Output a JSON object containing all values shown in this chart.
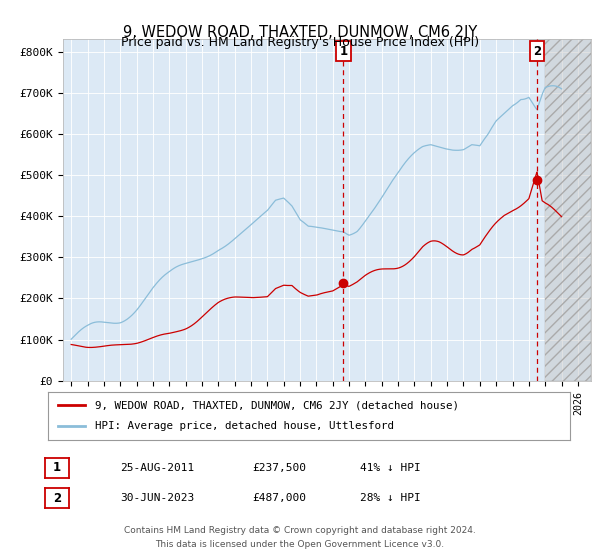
{
  "title": "9, WEDOW ROAD, THAXTED, DUNMOW, CM6 2JY",
  "subtitle": "Price paid vs. HM Land Registry's House Price Index (HPI)",
  "ylabel_ticks": [
    "£0",
    "£100K",
    "£200K",
    "£300K",
    "£400K",
    "£500K",
    "£600K",
    "£700K",
    "£800K"
  ],
  "ytick_values": [
    0,
    100000,
    200000,
    300000,
    400000,
    500000,
    600000,
    700000,
    800000
  ],
  "ylim": [
    0,
    830000
  ],
  "xlim_start": 1994.5,
  "xlim_end": 2026.8,
  "hpi_color": "#8bbdd9",
  "price_color": "#cc0000",
  "vline_color": "#cc0000",
  "annotation_box_color": "#cc0000",
  "plot_bg_color": "#dce9f5",
  "hatch_bg_color": "#d0d0d0",
  "legend_label_red": "9, WEDOW ROAD, THAXTED, DUNMOW, CM6 2JY (detached house)",
  "legend_label_blue": "HPI: Average price, detached house, Uttlesford",
  "sale1_date": 2011.647,
  "sale1_price": 237500,
  "sale2_date": 2023.495,
  "sale2_price": 487000,
  "footer_line1": "Contains HM Land Registry data © Crown copyright and database right 2024.",
  "footer_line2": "This data is licensed under the Open Government Licence v3.0.",
  "table_row1": [
    "1",
    "25-AUG-2011",
    "£237,500",
    "41% ↓ HPI"
  ],
  "table_row2": [
    "2",
    "30-JUN-2023",
    "£487,000",
    "28% ↓ HPI"
  ],
  "hatch_start": 2024.0
}
